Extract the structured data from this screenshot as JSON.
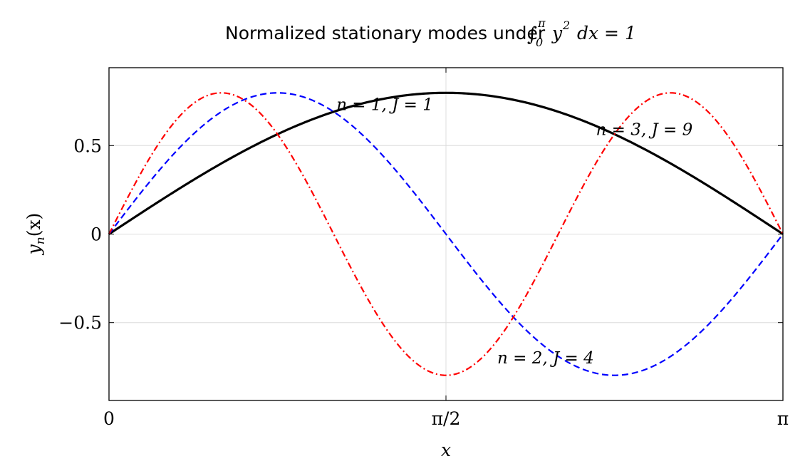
{
  "chart_data": {
    "type": "line",
    "title_text": "Normalized stationary modes under",
    "title_math": {
      "integral": "∫",
      "upper": "π",
      "lower": "0",
      "integrand": "y",
      "power": "2",
      "rest": "dx = 1"
    },
    "xlabel": "x",
    "ylabel": "yn(x)",
    "ylabel_parts": {
      "main": "y",
      "sub": "n",
      "arg": "(x)"
    },
    "xlim": [
      0,
      3.14159
    ],
    "ylim": [
      -0.94,
      0.94
    ],
    "x_ticks": [
      {
        "value": 0,
        "label": "0"
      },
      {
        "value": 1.5708,
        "label": "π/2"
      },
      {
        "value": 3.14159,
        "label": "π"
      }
    ],
    "y_ticks": [
      {
        "value": 0.5,
        "label": "0.5"
      },
      {
        "value": 0,
        "label": "0"
      },
      {
        "value": -0.5,
        "label": "−0.5"
      }
    ],
    "grid": true,
    "series": [
      {
        "n": 1,
        "amplitude": 0.7979,
        "color": "#000000",
        "style": "solid",
        "width": 3.2,
        "annotation": "n = 1,    J = 1",
        "annotation_x": 1.06,
        "annotation_y": 0.7
      },
      {
        "n": 2,
        "amplitude": 0.7979,
        "color": "#0000ff",
        "style": "dashed",
        "width": 2.2,
        "annotation": "n = 2,    J = 4",
        "annotation_x": 1.81,
        "annotation_y": -0.73
      },
      {
        "n": 3,
        "amplitude": 0.7979,
        "color": "#ff0000",
        "style": "dashdot",
        "width": 2.2,
        "annotation": "n = 3,    J = 9",
        "annotation_x": 2.27,
        "annotation_y": 0.56
      }
    ]
  }
}
